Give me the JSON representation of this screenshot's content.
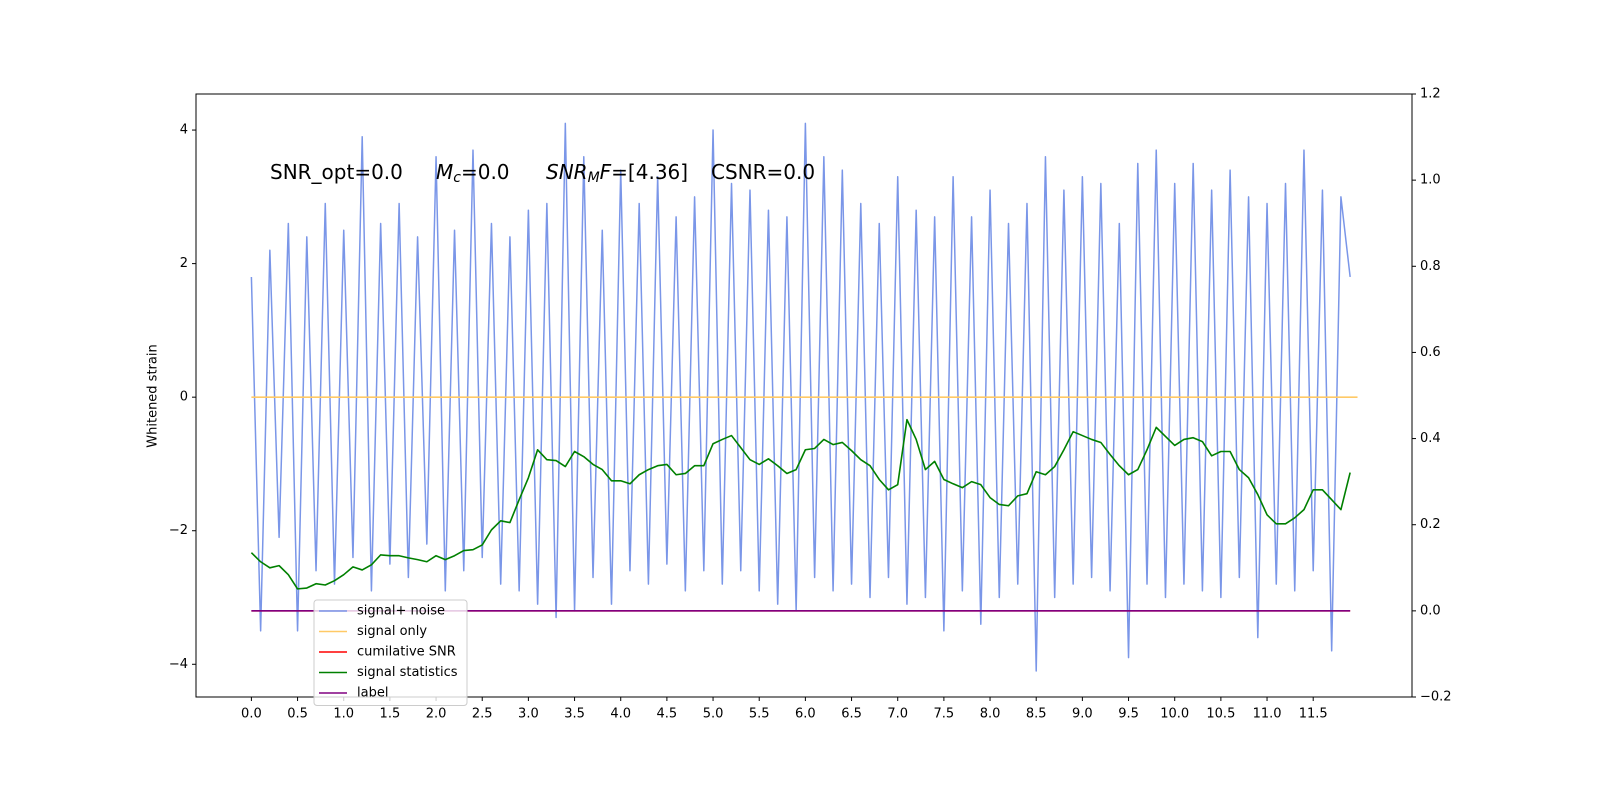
{
  "chart_data": {
    "type": "line",
    "ylabel": "Whitened strain",
    "annotations": [
      [
        {
          "t": "SNR_opt=0.0"
        }
      ],
      [
        {
          "t": "M",
          "italic": true
        },
        {
          "t": "c",
          "italic": true,
          "sub": true
        },
        {
          "t": "=0.0"
        }
      ],
      [
        {
          "t": "SNR",
          "italic": true
        },
        {
          "t": "M",
          "italic": true,
          "sub": true
        },
        {
          "t": "F",
          "italic": true
        },
        {
          "t": "=[4.36]"
        }
      ],
      [
        {
          "t": "CSNR=0.0"
        }
      ]
    ],
    "x": [
      0,
      0.1,
      0.2,
      0.3,
      0.4,
      0.5,
      0.6,
      0.7,
      0.8,
      0.9,
      1,
      1.1,
      1.2,
      1.3,
      1.4,
      1.5,
      1.6,
      1.7,
      1.8,
      1.9,
      2,
      2.1,
      2.2,
      2.3,
      2.4,
      2.5,
      2.6,
      2.7,
      2.8,
      2.9,
      3,
      3.1,
      3.2,
      3.3,
      3.4,
      3.5,
      3.6,
      3.7,
      3.8,
      3.9,
      4,
      4.1,
      4.2,
      4.3,
      4.4,
      4.5,
      4.6,
      4.7,
      4.8,
      4.9,
      5,
      5.1,
      5.2,
      5.3,
      5.4,
      5.5,
      5.6,
      5.7,
      5.8,
      5.9,
      6,
      6.1,
      6.2,
      6.3,
      6.4,
      6.5,
      6.6,
      6.7,
      6.8,
      6.9,
      7,
      7.1,
      7.2,
      7.3,
      7.4,
      7.5,
      7.6,
      7.7,
      7.8,
      7.9,
      8,
      8.1,
      8.2,
      8.3,
      8.4,
      8.5,
      8.6,
      8.7,
      8.8,
      8.9,
      9,
      9.1,
      9.2,
      9.3,
      9.4,
      9.5,
      9.6,
      9.7,
      9.8,
      9.9,
      10,
      10.1,
      10.2,
      10.3,
      10.4,
      10.5,
      10.6,
      10.7,
      10.8,
      10.9,
      11,
      11.1,
      11.2,
      11.3,
      11.4,
      11.5,
      11.6,
      11.7,
      11.8,
      11.9
    ],
    "series": [
      {
        "name": "signal+ noise",
        "color": "#7a96e8",
        "axis": "y",
        "values": [
          1.8,
          -3.5,
          2.2,
          -2.1,
          2.6,
          -3.5,
          2.4,
          -2.6,
          2.9,
          -2.8,
          2.5,
          -2.4,
          3.9,
          -2.9,
          2.6,
          -2.5,
          2.9,
          -2.7,
          2.4,
          -2.2,
          3.6,
          -2.9,
          2.5,
          -2.6,
          3.7,
          -2.4,
          2.6,
          -2.8,
          2.4,
          -2.9,
          2.8,
          -3.1,
          2.9,
          -3.3,
          4.1,
          -3.2,
          3.6,
          -2.7,
          2.5,
          -3.1,
          3.4,
          -2.6,
          2.9,
          -2.8,
          3.3,
          -2.5,
          2.7,
          -2.9,
          3.0,
          -2.6,
          4.0,
          -2.8,
          3.2,
          -2.6,
          3.1,
          -2.9,
          2.8,
          -3.1,
          2.7,
          -3.2,
          4.1,
          -2.7,
          3.6,
          -2.9,
          3.4,
          -2.8,
          2.9,
          -3.0,
          2.6,
          -2.7,
          3.3,
          -3.1,
          2.8,
          -3.0,
          2.7,
          -3.5,
          3.3,
          -2.9,
          2.7,
          -3.4,
          3.1,
          -3.0,
          2.6,
          -2.8,
          2.9,
          -4.1,
          3.6,
          -3.0,
          3.1,
          -2.8,
          3.3,
          -2.7,
          3.2,
          -2.9,
          2.6,
          -3.9,
          3.5,
          -2.8,
          3.7,
          -3.0,
          3.2,
          -2.8,
          3.5,
          -2.9,
          3.1,
          -3.0,
          3.4,
          -2.7,
          3.0,
          -3.6,
          2.9,
          -2.8,
          3.2,
          -2.9,
          3.7,
          -2.6,
          3.1,
          -3.8,
          3.0,
          1.8
        ]
      },
      {
        "name": "signal only",
        "color": "#ffc966",
        "axis": "y",
        "x": [
          0,
          11.98
        ],
        "values": [
          0,
          0
        ]
      },
      {
        "name": "cumilative SNR",
        "color": "#ff0000",
        "axis": "y2",
        "x": [
          0,
          11.9
        ],
        "values": [
          0,
          0
        ]
      },
      {
        "name": "signal statistics",
        "color": "#008000",
        "axis": "y2",
        "values": [
          0.135,
          0.114,
          0.1,
          0.105,
          0.084,
          0.051,
          0.053,
          0.063,
          0.06,
          0.07,
          0.084,
          0.102,
          0.095,
          0.107,
          0.13,
          0.128,
          0.128,
          0.123,
          0.119,
          0.114,
          0.128,
          0.119,
          0.128,
          0.14,
          0.142,
          0.153,
          0.188,
          0.209,
          0.205,
          0.258,
          0.309,
          0.374,
          0.351,
          0.349,
          0.335,
          0.37,
          0.358,
          0.34,
          0.328,
          0.302,
          0.302,
          0.295,
          0.316,
          0.328,
          0.337,
          0.34,
          0.316,
          0.319,
          0.337,
          0.337,
          0.388,
          0.398,
          0.407,
          0.379,
          0.351,
          0.34,
          0.353,
          0.337,
          0.319,
          0.328,
          0.374,
          0.377,
          0.398,
          0.386,
          0.391,
          0.372,
          0.351,
          0.337,
          0.305,
          0.281,
          0.293,
          0.444,
          0.398,
          0.328,
          0.347,
          0.305,
          0.295,
          0.286,
          0.3,
          0.293,
          0.263,
          0.247,
          0.244,
          0.267,
          0.272,
          0.323,
          0.316,
          0.335,
          0.374,
          0.416,
          0.407,
          0.398,
          0.391,
          0.363,
          0.337,
          0.316,
          0.328,
          0.374,
          0.426,
          0.405,
          0.384,
          0.398,
          0.402,
          0.393,
          0.36,
          0.37,
          0.37,
          0.328,
          0.309,
          0.27,
          0.223,
          0.202,
          0.202,
          0.216,
          0.235,
          0.281,
          0.281,
          0.258,
          0.235,
          0.321
        ]
      },
      {
        "name": "label",
        "color": "#800080",
        "axis": "y2",
        "x": [
          0,
          11.9
        ],
        "values": [
          0,
          0
        ]
      }
    ],
    "xlim": [
      -0.6,
      12.57
    ],
    "xticks": [
      {
        "value": 0,
        "label": "0.0"
      },
      0.5,
      {
        "value": 1,
        "label": "1.0"
      },
      1.5,
      {
        "value": 2,
        "label": "2.0"
      },
      2.5,
      {
        "value": 3,
        "label": "3.0"
      },
      3.5,
      {
        "value": 4,
        "label": "4.0"
      },
      4.5,
      {
        "value": 5,
        "label": "5.0"
      },
      5.5,
      {
        "value": 6,
        "label": "6.0"
      },
      6.5,
      {
        "value": 7,
        "label": "7.0"
      },
      7.5,
      {
        "value": 8,
        "label": "8.0"
      },
      8.5,
      {
        "value": 9,
        "label": "9.0"
      },
      9.5,
      {
        "value": 10,
        "label": "10.0"
      },
      10.5,
      {
        "value": 11,
        "label": "11.0"
      },
      11.5
    ],
    "ylim": [
      -4.49,
      4.54
    ],
    "yticks": [
      {
        "value": -4,
        "label": "−4"
      },
      {
        "value": -2,
        "label": "−2"
      },
      0,
      2,
      4
    ],
    "y2lim": [
      -0.2,
      1.2
    ],
    "y2ticks": [
      {
        "value": -0.2,
        "label": "−0.2"
      },
      {
        "value": 0,
        "label": "0.0"
      },
      0.2,
      0.4,
      0.6,
      0.8,
      {
        "value": 1,
        "label": "1.0"
      },
      1.2
    ],
    "legend": "lower left"
  }
}
